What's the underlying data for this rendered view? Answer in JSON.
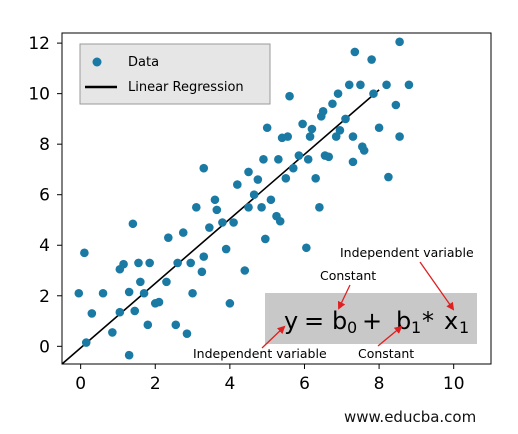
{
  "chart_data": {
    "type": "scatter",
    "xlim": [
      -0.5,
      11
    ],
    "ylim": [
      -0.7,
      12.4
    ],
    "x_ticks": [
      0,
      2,
      4,
      6,
      8,
      10
    ],
    "y_ticks": [
      0,
      2,
      4,
      6,
      8,
      10,
      12
    ],
    "grid": false,
    "legend_position": "top-left",
    "legend": {
      "data_label": "Data",
      "line_label": "Linear Regression"
    },
    "colors": {
      "points": "#1a7aa3",
      "line": "#000000",
      "eq_box": "#c8c8c8",
      "arrow": "#e02020"
    },
    "series": [
      {
        "name": "Data",
        "points": [
          [
            -0.05,
            2.1
          ],
          [
            0.1,
            3.7
          ],
          [
            0.15,
            0.15
          ],
          [
            0.3,
            1.3
          ],
          [
            0.6,
            2.1
          ],
          [
            0.85,
            0.55
          ],
          [
            1.05,
            1.35
          ],
          [
            1.05,
            3.05
          ],
          [
            1.15,
            3.25
          ],
          [
            1.3,
            -0.35
          ],
          [
            1.3,
            2.15
          ],
          [
            1.4,
            4.85
          ],
          [
            1.45,
            1.4
          ],
          [
            1.55,
            3.3
          ],
          [
            1.6,
            2.55
          ],
          [
            1.7,
            2.1
          ],
          [
            1.8,
            0.85
          ],
          [
            1.85,
            3.3
          ],
          [
            2.0,
            1.7
          ],
          [
            2.1,
            1.75
          ],
          [
            2.3,
            2.55
          ],
          [
            2.35,
            4.3
          ],
          [
            2.55,
            0.85
          ],
          [
            2.6,
            3.3
          ],
          [
            2.75,
            4.5
          ],
          [
            2.85,
            0.5
          ],
          [
            2.95,
            3.3
          ],
          [
            3.0,
            2.1
          ],
          [
            3.1,
            5.5
          ],
          [
            3.25,
            2.95
          ],
          [
            3.3,
            3.55
          ],
          [
            3.3,
            7.05
          ],
          [
            3.45,
            4.7
          ],
          [
            3.6,
            5.8
          ],
          [
            3.65,
            5.4
          ],
          [
            3.8,
            4.9
          ],
          [
            3.9,
            3.85
          ],
          [
            4.0,
            1.7
          ],
          [
            4.1,
            4.9
          ],
          [
            4.2,
            6.4
          ],
          [
            4.4,
            3.0
          ],
          [
            4.5,
            5.5
          ],
          [
            4.5,
            6.9
          ],
          [
            4.65,
            6.0
          ],
          [
            4.75,
            6.6
          ],
          [
            4.85,
            5.5
          ],
          [
            4.9,
            7.4
          ],
          [
            4.95,
            4.25
          ],
          [
            5.0,
            8.65
          ],
          [
            5.1,
            5.8
          ],
          [
            5.25,
            5.15
          ],
          [
            5.3,
            7.4
          ],
          [
            5.35,
            4.95
          ],
          [
            5.4,
            8.25
          ],
          [
            5.5,
            6.65
          ],
          [
            5.55,
            8.3
          ],
          [
            5.6,
            9.9
          ],
          [
            5.7,
            7.05
          ],
          [
            5.85,
            7.55
          ],
          [
            5.95,
            8.8
          ],
          [
            6.05,
            3.9
          ],
          [
            6.1,
            7.4
          ],
          [
            6.15,
            8.3
          ],
          [
            6.2,
            8.6
          ],
          [
            6.3,
            6.65
          ],
          [
            6.4,
            5.5
          ],
          [
            6.45,
            9.1
          ],
          [
            6.5,
            9.3
          ],
          [
            6.55,
            7.55
          ],
          [
            6.65,
            7.5
          ],
          [
            6.75,
            9.6
          ],
          [
            6.85,
            8.3
          ],
          [
            6.9,
            10.0
          ],
          [
            6.95,
            8.55
          ],
          [
            7.1,
            9.0
          ],
          [
            7.2,
            10.35
          ],
          [
            7.3,
            7.3
          ],
          [
            7.3,
            8.3
          ],
          [
            7.35,
            11.65
          ],
          [
            7.5,
            10.35
          ],
          [
            7.55,
            7.9
          ],
          [
            7.6,
            7.75
          ],
          [
            7.8,
            11.35
          ],
          [
            7.85,
            10.0
          ],
          [
            8.0,
            8.65
          ],
          [
            8.2,
            10.35
          ],
          [
            8.25,
            6.7
          ],
          [
            8.45,
            9.55
          ],
          [
            8.55,
            12.05
          ],
          [
            8.55,
            8.3
          ],
          [
            8.8,
            10.35
          ]
        ]
      },
      {
        "name": "Linear Regression",
        "type": "line",
        "points": [
          [
            -0.5,
            -0.7
          ],
          [
            8.0,
            10.15
          ]
        ]
      }
    ],
    "annotations": {
      "equation": {
        "y": "y",
        "b": "b",
        "x": "x",
        "sub0": "0",
        "sub1": "1",
        "sub_x": "1",
        "eq": "=",
        "plus": "+",
        "times": "*"
      },
      "labels": [
        {
          "id": "constant-top",
          "text": "Constant"
        },
        {
          "id": "independent-top",
          "text": "Independent variable"
        },
        {
          "id": "independent-bottom",
          "text": "Independent variable"
        },
        {
          "id": "constant-bottom",
          "text": "Constant"
        }
      ]
    }
  },
  "watermark": "www.educba.com"
}
